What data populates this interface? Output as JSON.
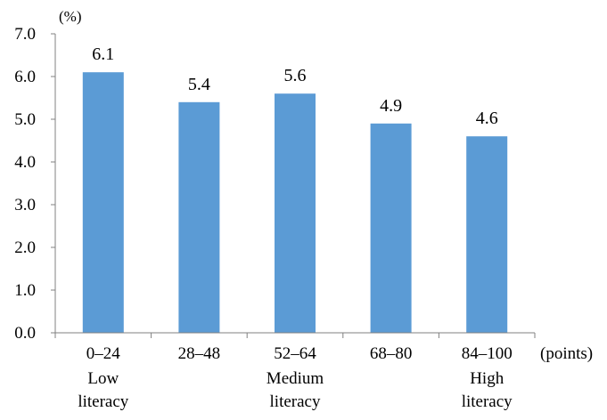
{
  "chart_data": {
    "type": "bar",
    "categories": [
      "0–24",
      "28–48",
      "52–64",
      "68–80",
      "84–100"
    ],
    "category_sublabels": [
      [
        "Low",
        "literacy"
      ],
      [],
      [
        "Medium",
        "literacy"
      ],
      [],
      [
        "High",
        "literacy"
      ]
    ],
    "values": [
      6.1,
      5.4,
      5.6,
      4.9,
      4.6
    ],
    "data_labels": [
      "6.1",
      "5.4",
      "5.6",
      "4.9",
      "4.6"
    ],
    "y_unit": "(%)",
    "x_unit": "(points)",
    "ylim": [
      0,
      7
    ],
    "yticks": [
      "0.0",
      "1.0",
      "2.0",
      "3.0",
      "4.0",
      "5.0",
      "6.0",
      "7.0"
    ],
    "grid": false,
    "bar_color": "#5b9bd5"
  }
}
